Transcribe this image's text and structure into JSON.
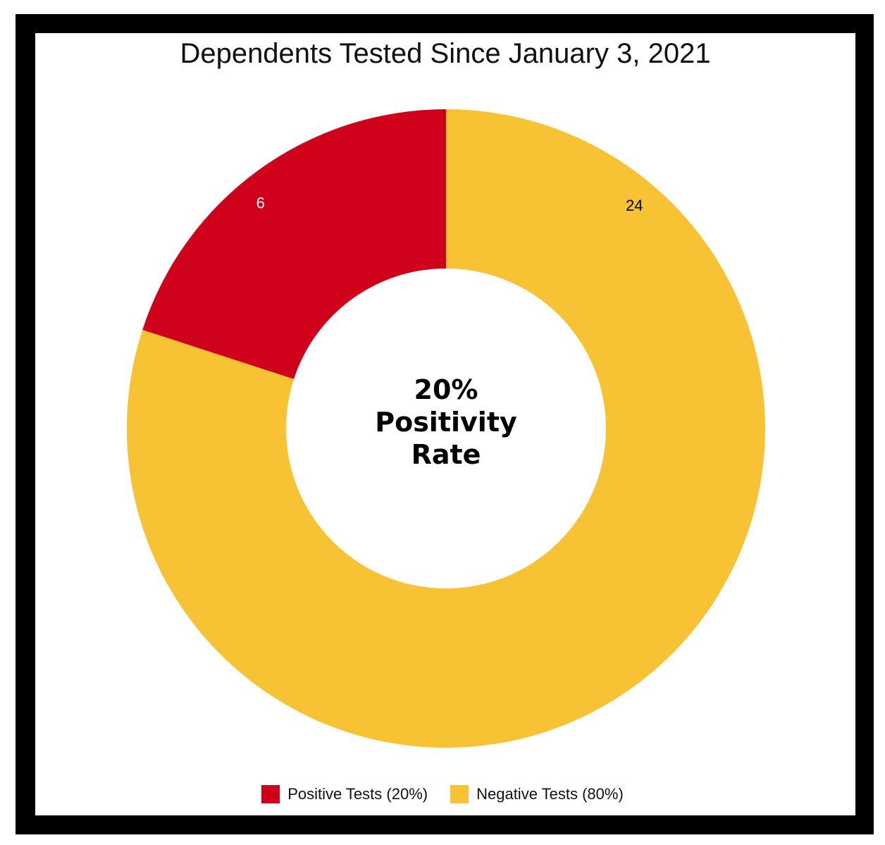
{
  "chart_data": {
    "type": "pie",
    "title": "Dependents Tested Since January 3, 2021",
    "center_text": [
      "20%",
      "Positivity",
      "Rate"
    ],
    "slices": [
      {
        "name": "Negative Tests (80%)",
        "value": 24,
        "label": "24",
        "color": "#F8C235",
        "label_color": "#000000"
      },
      {
        "name": "Positive Tests (20%)",
        "value": 6,
        "label": "6",
        "color": "#D0021B",
        "label_color": "#FFFFFF"
      }
    ],
    "donut": true,
    "legend_position": "bottom-center",
    "legend_order": [
      1,
      0
    ]
  }
}
